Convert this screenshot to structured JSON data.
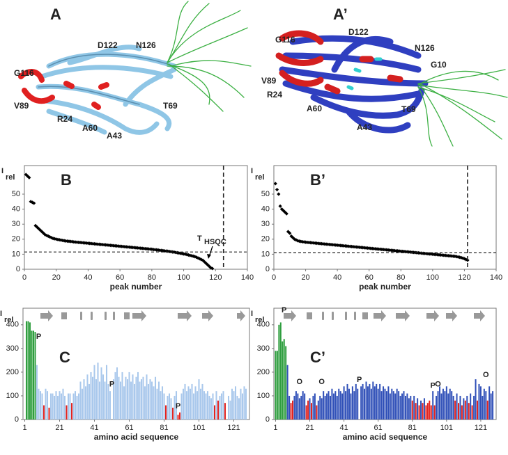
{
  "structures": [
    {
      "panel": "A",
      "labels": [
        "D122",
        "N126",
        "G116",
        "V89",
        "R24",
        "A60",
        "T69",
        "A43"
      ]
    },
    {
      "panel": "A’",
      "labels": [
        "G116",
        "D122",
        "N126",
        "G10",
        "V89",
        "R24",
        "A60",
        "T69",
        "A43"
      ]
    }
  ],
  "chart_data": [
    {
      "type": "scatter",
      "panel": "B",
      "y_label": "I",
      "y_label_sub": "rel",
      "x_label": "peak number",
      "color": "#000000",
      "xlim": [
        0,
        140
      ],
      "xticks": [
        0,
        20,
        40,
        60,
        80,
        100,
        120,
        140
      ],
      "ylim": [
        0,
        69
      ],
      "yticks": [
        0,
        10,
        20,
        30,
        40,
        50
      ],
      "hline": 11.5,
      "vline": 125,
      "annotation": {
        "text": "T",
        "sub": "HSQC"
      },
      "x": [
        1,
        2,
        3,
        4,
        5,
        6,
        7,
        8,
        9,
        10,
        11,
        12,
        13,
        14,
        15,
        16,
        17,
        18,
        19,
        20,
        21,
        22,
        23,
        24,
        25,
        26,
        27,
        28,
        29,
        30,
        31,
        32,
        33,
        34,
        35,
        36,
        37,
        38,
        39,
        40,
        41,
        42,
        43,
        44,
        45,
        46,
        47,
        48,
        49,
        50,
        51,
        52,
        53,
        54,
        55,
        56,
        57,
        58,
        59,
        60,
        61,
        62,
        63,
        64,
        65,
        66,
        67,
        68,
        69,
        70,
        71,
        72,
        73,
        74,
        75,
        76,
        77,
        78,
        79,
        80,
        81,
        82,
        83,
        84,
        85,
        86,
        87,
        88,
        89,
        90,
        91,
        92,
        93,
        94,
        95,
        96,
        97,
        98,
        99,
        100,
        101,
        102,
        103,
        104,
        105,
        106,
        107,
        108,
        109,
        110,
        111,
        112,
        113,
        114,
        115,
        116,
        117,
        118
      ],
      "values": [
        63,
        62,
        61,
        45,
        44.5,
        44,
        29,
        28,
        27,
        26,
        25,
        24,
        23,
        22.5,
        22,
        21.5,
        21,
        20.5,
        20.3,
        20,
        19.8,
        19.6,
        19.4,
        19.2,
        19,
        18.8,
        18.7,
        18.6,
        18.5,
        18.4,
        18.2,
        18.1,
        18,
        17.9,
        17.8,
        17.7,
        17.6,
        17.5,
        17.4,
        17.3,
        17.2,
        17.1,
        17,
        16.9,
        16.8,
        16.7,
        16.6,
        16.5,
        16.4,
        16.3,
        16.2,
        16.1,
        16,
        15.9,
        15.8,
        15.7,
        15.6,
        15.5,
        15.4,
        15.3,
        15.2,
        15.1,
        15,
        14.9,
        14.8,
        14.7,
        14.6,
        14.5,
        14.4,
        14.3,
        14.2,
        14.1,
        14,
        13.9,
        13.8,
        13.7,
        13.6,
        13.5,
        13.4,
        13.3,
        13.1,
        13,
        12.9,
        12.8,
        12.6,
        12.5,
        12.4,
        12.2,
        12.1,
        12,
        11.8,
        11.7,
        11.5,
        11.4,
        11.2,
        11,
        10.8,
        10.6,
        10.4,
        10.2,
        10,
        9.8,
        9.5,
        9.2,
        9,
        8.7,
        8.4,
        8,
        7.5,
        7,
        6.5,
        6,
        5,
        4,
        3,
        2,
        1,
        0.5
      ]
    },
    {
      "type": "scatter",
      "panel": "B’",
      "y_label": "I",
      "y_label_sub": "rel",
      "x_label": "peak number",
      "color": "#000000",
      "xlim": [
        0,
        140
      ],
      "xticks": [
        0,
        20,
        40,
        60,
        80,
        100,
        120,
        140
      ],
      "ylim": [
        0,
        69
      ],
      "yticks": [
        0,
        10,
        20,
        30,
        40,
        50
      ],
      "hline": 11,
      "vline": 122,
      "x": [
        1,
        2,
        3,
        4,
        5,
        6,
        7,
        8,
        9,
        10,
        11,
        12,
        13,
        14,
        15,
        16,
        17,
        18,
        19,
        20,
        21,
        22,
        23,
        24,
        25,
        26,
        27,
        28,
        29,
        30,
        31,
        32,
        33,
        34,
        35,
        36,
        37,
        38,
        39,
        40,
        41,
        42,
        43,
        44,
        45,
        46,
        47,
        48,
        49,
        50,
        51,
        52,
        53,
        54,
        55,
        56,
        57,
        58,
        59,
        60,
        61,
        62,
        63,
        64,
        65,
        66,
        67,
        68,
        69,
        70,
        71,
        72,
        73,
        74,
        75,
        76,
        77,
        78,
        79,
        80,
        81,
        82,
        83,
        84,
        85,
        86,
        87,
        88,
        89,
        90,
        91,
        92,
        93,
        94,
        95,
        96,
        97,
        98,
        99,
        100,
        101,
        102,
        103,
        104,
        105,
        106,
        107,
        108,
        109,
        110,
        111,
        112,
        113,
        114,
        115,
        116,
        117,
        118,
        119,
        120,
        121,
        122
      ],
      "values": [
        57,
        53,
        50,
        42,
        40,
        39,
        38,
        37,
        25,
        24,
        22,
        21,
        20,
        19.5,
        19,
        18.7,
        18.5,
        18.3,
        18.2,
        18,
        17.9,
        17.8,
        17.7,
        17.6,
        17.5,
        17.4,
        17.3,
        17.2,
        17.1,
        17,
        16.9,
        16.8,
        16.7,
        16.6,
        16.5,
        16.4,
        16.3,
        16.2,
        16.1,
        16,
        15.9,
        15.8,
        15.7,
        15.6,
        15.5,
        15.4,
        15.3,
        15.2,
        15.1,
        15,
        14.9,
        14.8,
        14.7,
        14.6,
        14.5,
        14.4,
        14.3,
        14.2,
        14.1,
        14,
        13.9,
        13.8,
        13.7,
        13.6,
        13.5,
        13.4,
        13.3,
        13.2,
        13.1,
        13,
        12.9,
        12.8,
        12.7,
        12.6,
        12.5,
        12.4,
        12.3,
        12.2,
        12.1,
        12,
        11.9,
        11.8,
        11.7,
        11.6,
        11.5,
        11.4,
        11.3,
        11.2,
        11.1,
        11,
        10.9,
        10.8,
        10.7,
        10.6,
        10.5,
        10.4,
        10.3,
        10.2,
        10.1,
        10,
        9.9,
        9.8,
        9.7,
        9.6,
        9.5,
        9.4,
        9.3,
        9.2,
        9.1,
        9,
        8.9,
        8.8,
        8.7,
        8.6,
        8.4,
        8.2,
        8,
        7.7,
        7.4,
        7,
        6.5,
        6
      ]
    },
    {
      "type": "bar",
      "panel": "C",
      "y_label": "I",
      "y_label_sub": "rel",
      "x_label": "amino acid sequence",
      "color": "#a9c8ec",
      "highlights": [
        {
          "color": "#2e9e3e",
          "x": [
            2,
            3,
            4,
            5,
            6,
            7
          ]
        },
        {
          "color": "#e3231f",
          "x": [
            12,
            15,
            25,
            28,
            82,
            86,
            89,
            90,
            110,
            112,
            116
          ]
        }
      ],
      "xlim": [
        0,
        130
      ],
      "xticks": [
        1,
        21,
        41,
        61,
        81,
        101,
        121
      ],
      "ylim": [
        0,
        470
      ],
      "yticks": [
        0,
        100,
        200,
        300,
        400
      ],
      "annotations": [
        {
          "text": "P",
          "x": 9,
          "y": 332
        },
        {
          "text": "P",
          "x": 51,
          "y": 130
        },
        {
          "text": "P",
          "x": 89,
          "y": 38
        }
      ],
      "x": [
        1,
        2,
        3,
        4,
        5,
        6,
        7,
        8,
        9,
        10,
        11,
        12,
        13,
        14,
        15,
        16,
        17,
        18,
        19,
        20,
        21,
        22,
        23,
        24,
        25,
        26,
        27,
        28,
        29,
        30,
        31,
        32,
        33,
        34,
        35,
        36,
        37,
        38,
        39,
        40,
        41,
        42,
        43,
        44,
        45,
        46,
        47,
        48,
        49,
        50,
        51,
        52,
        53,
        54,
        55,
        56,
        57,
        58,
        59,
        60,
        61,
        62,
        63,
        64,
        65,
        66,
        67,
        68,
        69,
        70,
        71,
        72,
        73,
        74,
        75,
        76,
        77,
        78,
        79,
        80,
        81,
        82,
        83,
        84,
        85,
        86,
        87,
        88,
        89,
        90,
        91,
        92,
        93,
        94,
        95,
        96,
        97,
        98,
        99,
        100,
        101,
        102,
        103,
        104,
        105,
        106,
        107,
        108,
        109,
        110,
        111,
        112,
        113,
        114,
        115,
        116,
        117,
        118,
        119,
        120,
        121,
        122,
        123,
        124,
        125,
        126,
        127,
        128
      ],
      "values": [
        0,
        415,
        415,
        410,
        375,
        375,
        370,
        230,
        130,
        120,
        110,
        60,
        130,
        120,
        50,
        110,
        110,
        100,
        120,
        100,
        120,
        110,
        130,
        100,
        60,
        110,
        110,
        70,
        110,
        120,
        100,
        110,
        160,
        130,
        170,
        140,
        190,
        150,
        200,
        180,
        230,
        170,
        240,
        160,
        220,
        190,
        160,
        230,
        150,
        120,
        0,
        170,
        200,
        220,
        180,
        160,
        200,
        140,
        180,
        170,
        200,
        160,
        190,
        150,
        180,
        200,
        160,
        170,
        180,
        140,
        190,
        150,
        170,
        160,
        140,
        180,
        130,
        160,
        120,
        140,
        110,
        60,
        100,
        110,
        90,
        50,
        100,
        120,
        20,
        30,
        110,
        130,
        150,
        120,
        140,
        130,
        150,
        110,
        140,
        120,
        170,
        130,
        150,
        120,
        110,
        120,
        100,
        90,
        110,
        60,
        120,
        80,
        100,
        110,
        120,
        70,
        0,
        100,
        80,
        130,
        120,
        140,
        100,
        90,
        130,
        110,
        140,
        130
      ]
    },
    {
      "type": "bar",
      "panel": "C’",
      "y_label": "I",
      "y_label_sub": "rel",
      "x_label": "amino acid sequence",
      "color": "#3050b8",
      "highlights": [
        {
          "color": "#2e9e3e",
          "x": [
            1,
            2,
            3,
            4,
            5,
            6,
            7
          ]
        },
        {
          "color": "#e3231f",
          "x": [
            10,
            11,
            19,
            20,
            22,
            25,
            81,
            83,
            85,
            87,
            89,
            90,
            91,
            92,
            94,
            106,
            108,
            110,
            112,
            114,
            116,
            119,
            125
          ]
        }
      ],
      "xlim": [
        0,
        130
      ],
      "xticks": [
        1,
        21,
        41,
        61,
        81,
        101,
        121
      ],
      "ylim": [
        0,
        470
      ],
      "yticks": [
        0,
        100,
        200,
        300,
        400
      ],
      "annotations": [
        {
          "text": "P",
          "x": 6,
          "y": 444
        },
        {
          "text": "O",
          "x": 15,
          "y": 141
        },
        {
          "text": "O",
          "x": 28,
          "y": 141
        },
        {
          "text": "P",
          "x": 50,
          "y": 150
        },
        {
          "text": "P",
          "x": 93,
          "y": 125
        },
        {
          "text": "O",
          "x": 96,
          "y": 130
        },
        {
          "text": "O",
          "x": 124,
          "y": 170
        }
      ],
      "x": [
        1,
        2,
        3,
        4,
        5,
        6,
        7,
        8,
        9,
        10,
        11,
        12,
        13,
        14,
        15,
        16,
        17,
        18,
        19,
        20,
        21,
        22,
        23,
        24,
        25,
        26,
        27,
        28,
        29,
        30,
        31,
        32,
        33,
        34,
        35,
        36,
        37,
        38,
        39,
        40,
        41,
        42,
        43,
        44,
        45,
        46,
        47,
        48,
        49,
        50,
        51,
        52,
        53,
        54,
        55,
        56,
        57,
        58,
        59,
        60,
        61,
        62,
        63,
        64,
        65,
        66,
        67,
        68,
        69,
        70,
        71,
        72,
        73,
        74,
        75,
        76,
        77,
        78,
        79,
        80,
        81,
        82,
        83,
        84,
        85,
        86,
        87,
        88,
        89,
        90,
        91,
        92,
        93,
        94,
        95,
        96,
        97,
        98,
        99,
        100,
        101,
        102,
        103,
        104,
        105,
        106,
        107,
        108,
        109,
        110,
        111,
        112,
        113,
        114,
        115,
        116,
        117,
        118,
        119,
        120,
        121,
        122,
        123,
        124,
        125,
        126,
        127,
        128
      ],
      "values": [
        290,
        290,
        400,
        410,
        330,
        340,
        310,
        230,
        100,
        70,
        80,
        100,
        120,
        110,
        90,
        100,
        120,
        110,
        60,
        80,
        90,
        70,
        100,
        110,
        60,
        80,
        100,
        90,
        120,
        100,
        110,
        120,
        100,
        130,
        110,
        120,
        100,
        130,
        120,
        110,
        140,
        120,
        150,
        130,
        110,
        140,
        120,
        150,
        130,
        0,
        140,
        150,
        130,
        160,
        140,
        150,
        130,
        160,
        140,
        150,
        130,
        150,
        120,
        140,
        130,
        120,
        140,
        110,
        130,
        120,
        110,
        130,
        120,
        100,
        110,
        120,
        100,
        110,
        90,
        100,
        80,
        100,
        70,
        90,
        60,
        80,
        70,
        90,
        60,
        70,
        80,
        60,
        120,
        60,
        100,
        120,
        140,
        110,
        130,
        120,
        140,
        110,
        130,
        120,
        100,
        80,
        110,
        70,
        100,
        60,
        90,
        80,
        100,
        70,
        110,
        60,
        100,
        170,
        80,
        150,
        140,
        100,
        130,
        120,
        80,
        140,
        110,
        120
      ]
    }
  ]
}
